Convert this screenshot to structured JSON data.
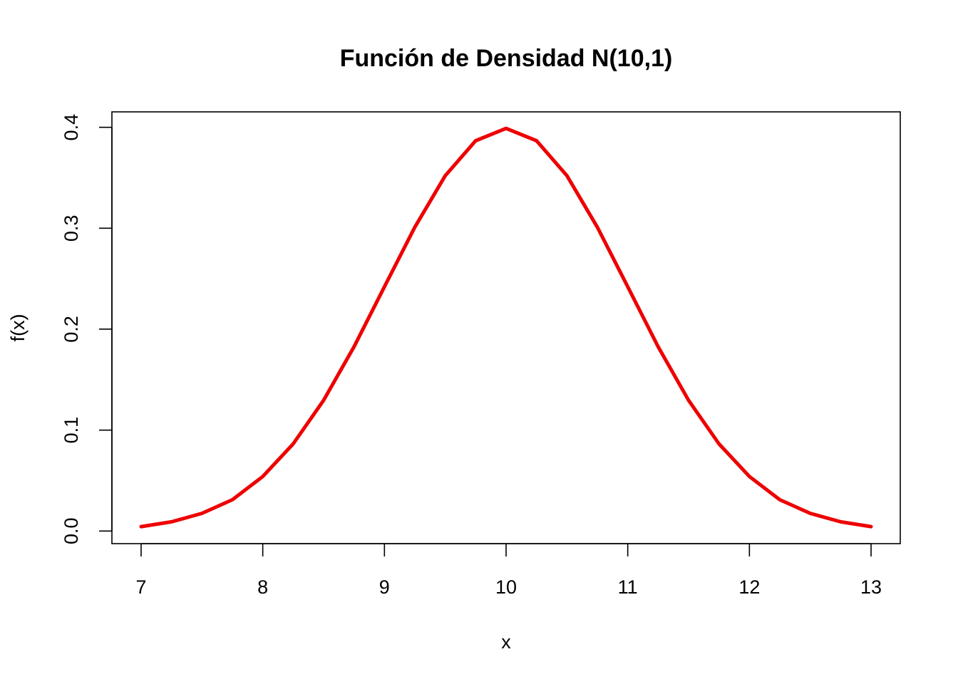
{
  "chart_data": {
    "type": "line",
    "title": "Función de Densidad N(10,1)",
    "xlabel": "x",
    "ylabel": "f(x)",
    "xlim": [
      6.76,
      13.24
    ],
    "ylim": [
      -0.0125,
      0.4153
    ],
    "x_ticks": [
      7,
      8,
      9,
      10,
      11,
      12,
      13
    ],
    "x_tick_labels": [
      "7",
      "8",
      "9",
      "10",
      "11",
      "12",
      "13"
    ],
    "y_ticks": [
      0.0,
      0.1,
      0.2,
      0.3,
      0.4
    ],
    "y_tick_labels": [
      "0.0",
      "0.1",
      "0.2",
      "0.3",
      "0.4"
    ],
    "grid": false,
    "series": [
      {
        "color": "#ee0000",
        "x": [
          7.0,
          7.25,
          7.5,
          7.75,
          8.0,
          8.25,
          8.5,
          8.75,
          9.0,
          9.25,
          9.5,
          9.75,
          10.0,
          10.25,
          10.5,
          10.75,
          11.0,
          11.25,
          11.5,
          11.75,
          12.0,
          12.25,
          12.5,
          12.75,
          13.0
        ],
        "y": [
          0.0044,
          0.0091,
          0.0175,
          0.031,
          0.054,
          0.0863,
          0.1295,
          0.1826,
          0.242,
          0.3011,
          0.3521,
          0.3867,
          0.3989,
          0.3867,
          0.3521,
          0.3011,
          0.242,
          0.1826,
          0.1295,
          0.0863,
          0.054,
          0.031,
          0.0175,
          0.0091,
          0.0044
        ]
      }
    ]
  }
}
